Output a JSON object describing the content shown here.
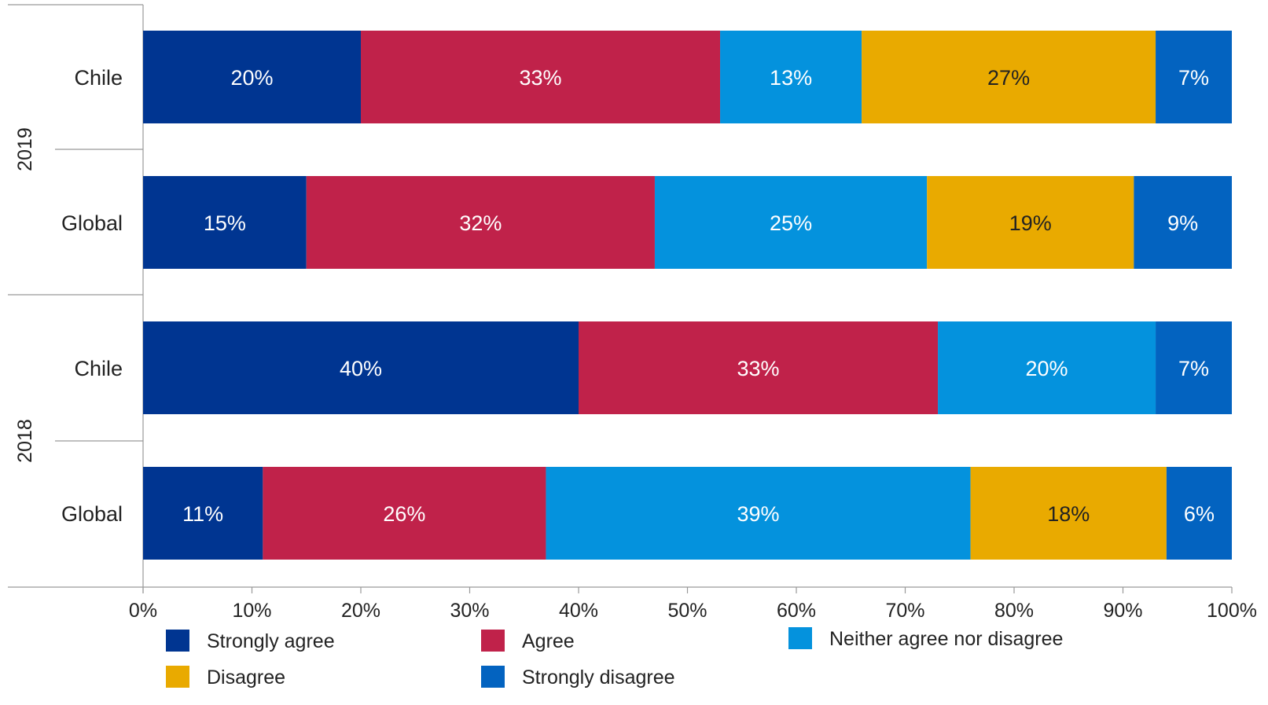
{
  "chart_data": {
    "type": "bar",
    "orientation": "horizontal",
    "stacked": true,
    "xlim": [
      0,
      100
    ],
    "x_ticks": [
      "0%",
      "10%",
      "20%",
      "30%",
      "40%",
      "50%",
      "60%",
      "70%",
      "80%",
      "90%",
      "100%"
    ],
    "groups": [
      {
        "label": "2019",
        "categories": [
          "Chile",
          "Global"
        ]
      },
      {
        "label": "2018",
        "categories": [
          "Chile",
          "Global"
        ]
      }
    ],
    "series": [
      {
        "name": "Strongly agree",
        "color": "#003591",
        "label_color": "#ffffff",
        "values": [
          20,
          15,
          40,
          11
        ],
        "labels": [
          "20%",
          "15%",
          "40%",
          "11%"
        ]
      },
      {
        "name": "Agree",
        "color": "#c0224a",
        "label_color": "#ffffff",
        "values": [
          33,
          32,
          33,
          26
        ],
        "labels": [
          "33%",
          "32%",
          "33%",
          "26%"
        ]
      },
      {
        "name": "Neither agree nor disagree",
        "color": "#0492dd",
        "label_color": "#ffffff",
        "values": [
          13,
          25,
          20,
          39
        ],
        "labels": [
          "13%",
          "25%",
          "20%",
          "39%"
        ]
      },
      {
        "name": "Disagree",
        "color": "#e9aa00",
        "label_color": "#222222",
        "values": [
          27,
          19,
          0,
          18
        ],
        "labels": [
          "27%",
          "19%",
          "",
          "18%"
        ]
      },
      {
        "name": "Strongly disagree",
        "color": "#0363c0",
        "label_color": "#ffffff",
        "values": [
          7,
          9,
          7,
          6
        ],
        "labels": [
          "7%",
          "9%",
          "7%",
          "6%"
        ]
      }
    ],
    "legend_position": "bottom",
    "grid": false
  }
}
